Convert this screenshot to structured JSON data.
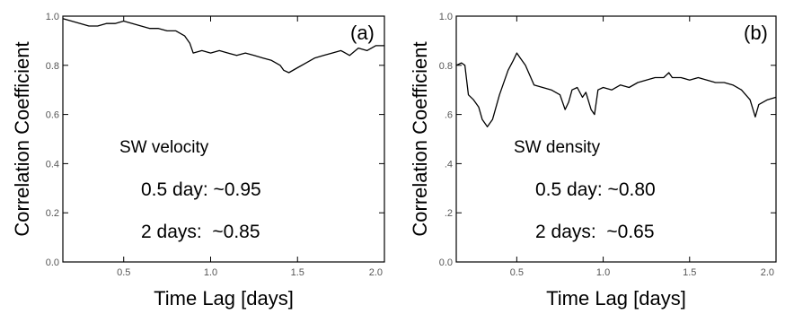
{
  "chart_data": [
    {
      "type": "line",
      "panel": "(a)",
      "xlabel": "Time Lag [days]",
      "ylabel": "Correlation Coefficient",
      "xlim": [
        0.15,
        2.0
      ],
      "ylim": [
        0.0,
        1.0
      ],
      "xticks": [
        "0.5",
        "1.0",
        "1.5",
        "2.0"
      ],
      "xtick_values": [
        0.5,
        1.0,
        1.5,
        2.0
      ],
      "yticks": [
        "0.0",
        "0.2",
        "0.4",
        "0.6",
        "0.8",
        "1.0"
      ],
      "ytick_values": [
        0.0,
        0.2,
        0.4,
        0.6,
        0.8,
        1.0
      ],
      "annotations": [
        "SW velocity",
        "0.5 day: ~0.95",
        "2 days:  ~0.85"
      ],
      "series": [
        {
          "x": [
            0.15,
            0.2,
            0.25,
            0.3,
            0.35,
            0.4,
            0.45,
            0.5,
            0.55,
            0.6,
            0.65,
            0.7,
            0.75,
            0.8,
            0.85,
            0.88,
            0.9,
            0.95,
            1.0,
            1.05,
            1.1,
            1.15,
            1.2,
            1.25,
            1.3,
            1.35,
            1.4,
            1.42,
            1.45,
            1.5,
            1.55,
            1.6,
            1.65,
            1.7,
            1.75,
            1.8,
            1.85,
            1.9,
            1.95,
            2.0
          ],
          "y": [
            0.99,
            0.98,
            0.97,
            0.96,
            0.96,
            0.97,
            0.97,
            0.98,
            0.97,
            0.96,
            0.95,
            0.95,
            0.94,
            0.94,
            0.92,
            0.89,
            0.85,
            0.86,
            0.85,
            0.86,
            0.85,
            0.84,
            0.85,
            0.84,
            0.83,
            0.82,
            0.8,
            0.78,
            0.77,
            0.79,
            0.81,
            0.83,
            0.84,
            0.85,
            0.86,
            0.84,
            0.87,
            0.86,
            0.88,
            0.88
          ]
        }
      ]
    },
    {
      "type": "line",
      "panel": "(b)",
      "xlabel": "Time Lag [days]",
      "ylabel": "Correlation Coefficient",
      "xlim": [
        0.15,
        2.0
      ],
      "ylim": [
        0.0,
        1.0
      ],
      "xticks": [
        "0.5",
        "1.0",
        "1.5",
        "2.0"
      ],
      "xtick_values": [
        0.5,
        1.0,
        1.5,
        2.0
      ],
      "yticks": [
        "0.0",
        ".2",
        ".4",
        ".6",
        "0.8",
        "1.0"
      ],
      "ytick_values": [
        0.0,
        0.2,
        0.4,
        0.6,
        0.8,
        1.0
      ],
      "annotations": [
        "SW density",
        "0.5 day: ~0.80",
        "2 days:  ~0.65"
      ],
      "series": [
        {
          "x": [
            0.15,
            0.18,
            0.2,
            0.22,
            0.25,
            0.28,
            0.3,
            0.33,
            0.36,
            0.4,
            0.45,
            0.48,
            0.5,
            0.52,
            0.55,
            0.6,
            0.65,
            0.7,
            0.75,
            0.78,
            0.8,
            0.82,
            0.85,
            0.88,
            0.9,
            0.93,
            0.95,
            0.97,
            1.0,
            1.05,
            1.1,
            1.15,
            1.2,
            1.25,
            1.3,
            1.35,
            1.38,
            1.4,
            1.45,
            1.5,
            1.55,
            1.6,
            1.65,
            1.7,
            1.75,
            1.8,
            1.85,
            1.88,
            1.9,
            1.95,
            2.0
          ],
          "y": [
            0.8,
            0.81,
            0.8,
            0.68,
            0.66,
            0.63,
            0.58,
            0.55,
            0.58,
            0.68,
            0.78,
            0.82,
            0.85,
            0.83,
            0.8,
            0.72,
            0.71,
            0.7,
            0.68,
            0.62,
            0.65,
            0.7,
            0.71,
            0.67,
            0.69,
            0.62,
            0.6,
            0.7,
            0.71,
            0.7,
            0.72,
            0.71,
            0.73,
            0.74,
            0.75,
            0.75,
            0.77,
            0.75,
            0.75,
            0.74,
            0.75,
            0.74,
            0.73,
            0.73,
            0.72,
            0.7,
            0.66,
            0.59,
            0.64,
            0.66,
            0.67
          ]
        }
      ]
    }
  ]
}
